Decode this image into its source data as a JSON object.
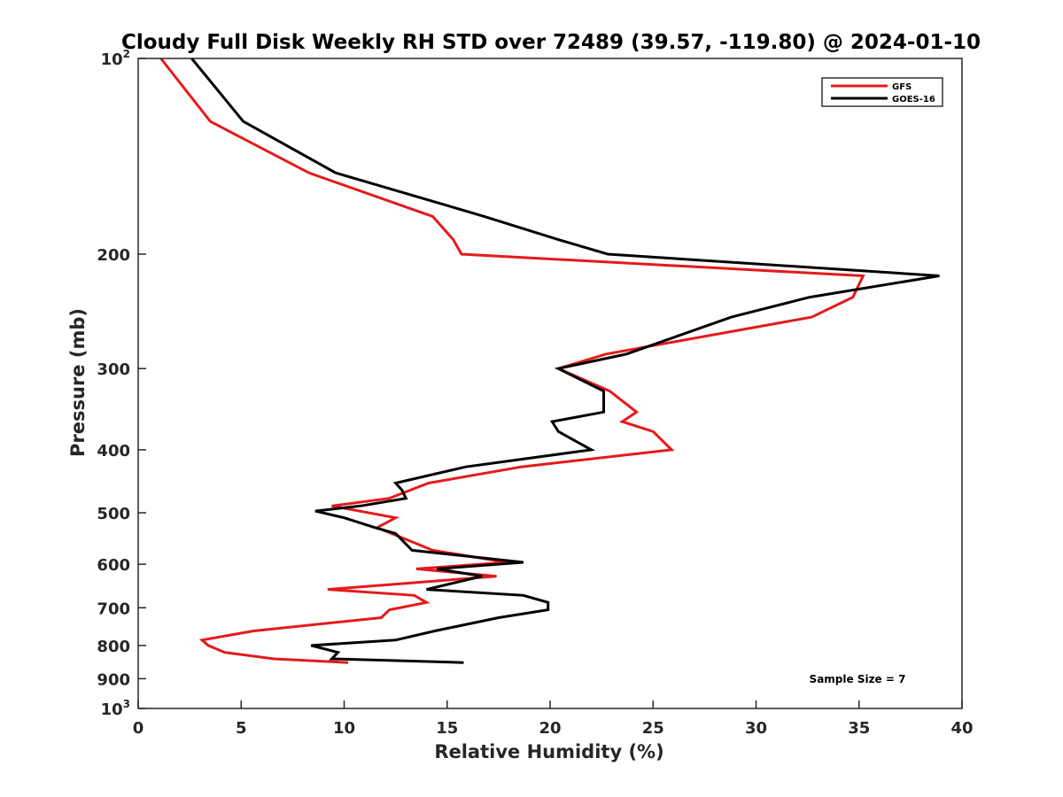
{
  "chart_data": {
    "type": "line",
    "title": "Cloudy Full Disk Weekly RH STD over 72489 (39.57, -119.80) @ 2024-01-10",
    "xlabel": "Relative Humidity (%)",
    "ylabel": "Pressure (mb)",
    "xlim": [
      0,
      40
    ],
    "ylim": [
      100,
      1000
    ],
    "y_scale": "log",
    "y_reversed": true,
    "grid": false,
    "legend_position": "top-right",
    "x_ticks": [
      "0",
      "5",
      "10",
      "15",
      "20",
      "25",
      "30",
      "35",
      "40"
    ],
    "y_ticks": [
      {
        "value": 100,
        "base": "10",
        "exp": "2"
      },
      {
        "value": 200,
        "label": "200"
      },
      {
        "value": 300,
        "label": "300"
      },
      {
        "value": 400,
        "label": "400"
      },
      {
        "value": 500,
        "label": "500"
      },
      {
        "value": 600,
        "label": "600"
      },
      {
        "value": 700,
        "label": "700"
      },
      {
        "value": 800,
        "label": "800"
      },
      {
        "value": 900,
        "label": "900"
      },
      {
        "value": 1000,
        "base": "10",
        "exp": "3"
      }
    ],
    "series": [
      {
        "name": "GFS",
        "color": "#e41a1c",
        "points": [
          [
            1.1,
            100
          ],
          [
            3.5,
            125
          ],
          [
            8.3,
            150
          ],
          [
            14.3,
            175
          ],
          [
            15.3,
            190
          ],
          [
            15.7,
            200
          ],
          [
            35.2,
            216
          ],
          [
            34.7,
            233
          ],
          [
            32.7,
            250
          ],
          [
            22.7,
            285
          ],
          [
            20.4,
            300
          ],
          [
            22.9,
            325
          ],
          [
            24.2,
            350
          ],
          [
            23.5,
            362
          ],
          [
            25.0,
            375
          ],
          [
            25.9,
            400
          ],
          [
            18.6,
            425
          ],
          [
            14.1,
            450
          ],
          [
            12.2,
            475
          ],
          [
            9.4,
            488
          ],
          [
            12.5,
            509
          ],
          [
            11.6,
            527
          ],
          [
            12.3,
            538
          ],
          [
            14.3,
            571
          ],
          [
            17.9,
            596
          ],
          [
            13.5,
            610
          ],
          [
            17.4,
            626
          ],
          [
            9.2,
            656
          ],
          [
            13.4,
            670
          ],
          [
            14.0,
            687
          ],
          [
            12.2,
            705
          ],
          [
            11.8,
            725
          ],
          [
            5.6,
            760
          ],
          [
            3.1,
            785
          ],
          [
            3.4,
            800
          ],
          [
            4.2,
            820
          ],
          [
            6.6,
            839
          ],
          [
            10.2,
            850
          ]
        ]
      },
      {
        "name": "GOES-16",
        "color": "#000000",
        "points": [
          [
            2.6,
            100
          ],
          [
            5.1,
            125
          ],
          [
            9.6,
            150
          ],
          [
            16.8,
            175
          ],
          [
            20.4,
            190
          ],
          [
            22.8,
            200
          ],
          [
            38.9,
            216
          ],
          [
            32.6,
            233
          ],
          [
            28.8,
            250
          ],
          [
            23.7,
            285
          ],
          [
            20.4,
            300
          ],
          [
            22.6,
            325
          ],
          [
            22.6,
            350
          ],
          [
            20.1,
            362
          ],
          [
            20.4,
            375
          ],
          [
            22.0,
            400
          ],
          [
            15.9,
            425
          ],
          [
            12.5,
            450
          ],
          [
            12.8,
            461
          ],
          [
            13.0,
            475
          ],
          [
            10.8,
            488
          ],
          [
            8.6,
            497
          ],
          [
            10.0,
            509
          ],
          [
            11.5,
            527
          ],
          [
            12.5,
            538
          ],
          [
            13.3,
            571
          ],
          [
            18.7,
            596
          ],
          [
            14.5,
            610
          ],
          [
            16.7,
            626
          ],
          [
            14.0,
            656
          ],
          [
            18.7,
            670
          ],
          [
            19.9,
            687
          ],
          [
            19.9,
            705
          ],
          [
            17.5,
            725
          ],
          [
            14.4,
            760
          ],
          [
            12.5,
            785
          ],
          [
            8.4,
            800
          ],
          [
            9.7,
            820
          ],
          [
            9.4,
            839
          ],
          [
            15.8,
            850
          ]
        ]
      }
    ],
    "annotation": "Sample Size = 7"
  }
}
